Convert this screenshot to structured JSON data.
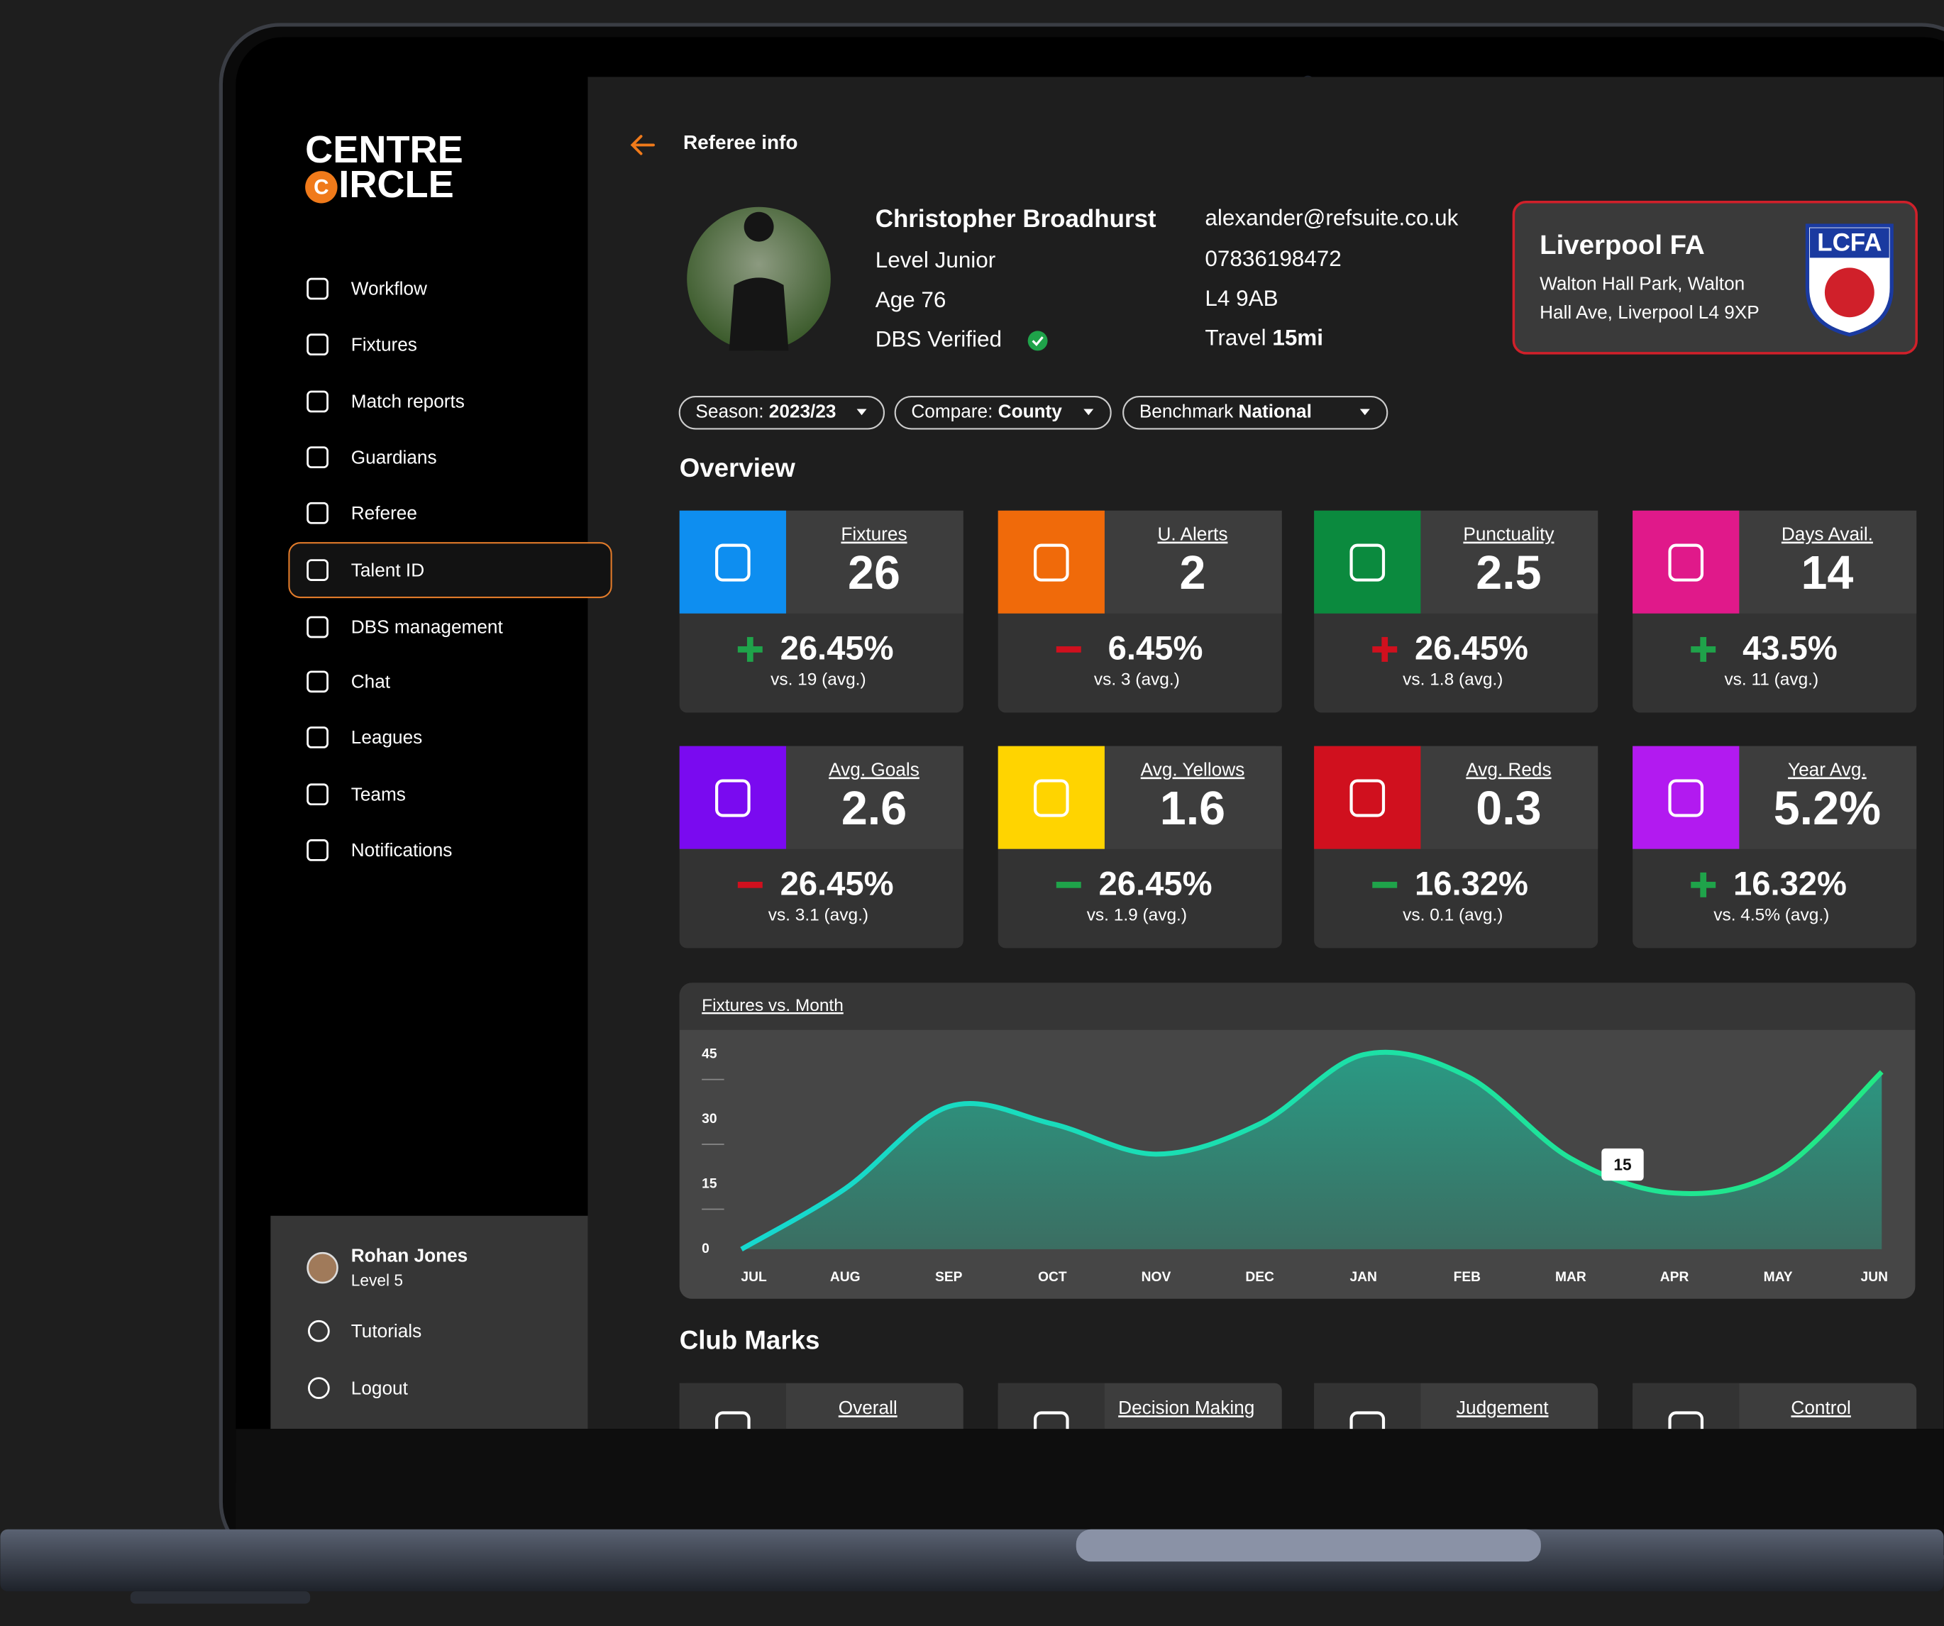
{
  "brand": {
    "top": "CENTRE",
    "mark": "C",
    "bottom": "IRCLE"
  },
  "nav": [
    {
      "label": "Workflow",
      "active": false
    },
    {
      "label": "Fixtures",
      "active": false
    },
    {
      "label": "Match reports",
      "active": false
    },
    {
      "label": "Guardians",
      "active": false
    },
    {
      "label": "Referee",
      "active": false
    },
    {
      "label": "Talent ID",
      "active": true
    },
    {
      "label": "DBS management",
      "active": false
    },
    {
      "label": "Chat",
      "active": false
    },
    {
      "label": "Leagues",
      "active": false
    },
    {
      "label": "Teams",
      "active": false
    },
    {
      "label": "Notifications",
      "active": false
    }
  ],
  "user": {
    "name": "Rohan Jones",
    "level": "Level 5"
  },
  "footer_nav": [
    "Tutorials",
    "Logout"
  ],
  "header": {
    "title": "Referee info"
  },
  "profile": {
    "name": "Christopher Broadhurst",
    "level": "Level Junior",
    "age": "Age 76",
    "dbs": "DBS Verified",
    "email": "alexander@refsuite.co.uk",
    "phone": "07836198472",
    "postcode": "L4 9AB",
    "travel_label": "Travel",
    "travel": "15mi"
  },
  "club": {
    "name": "Liverpool FA",
    "address_lines": [
      "Walton Hall Park, Walton",
      "Hall Ave, Liverpool L4 9XP"
    ],
    "badge": "LCFA"
  },
  "filters": [
    {
      "label": "Season:",
      "value": "2023/23"
    },
    {
      "label": "Compare:",
      "value": "County"
    },
    {
      "label": "Benchmark",
      "value": "National"
    }
  ],
  "overview": {
    "title": "Overview",
    "cards": [
      {
        "label": "Fixtures",
        "value": "26",
        "sign": "plus",
        "sign_color": "#1fa34a",
        "change": "26.45%",
        "comparison": "vs. 19 (avg.)",
        "color": "#0e8ef0"
      },
      {
        "label": "U. Alerts",
        "value": "2",
        "sign": "minus",
        "sign_color": "#d0101e",
        "change": "6.45%",
        "comparison": "vs. 3 (avg.)",
        "color": "#f06a0a"
      },
      {
        "label": "Punctuality",
        "value": "2.5",
        "sign": "plus",
        "sign_color": "#d0101e",
        "change": "26.45%",
        "comparison": "vs. 1.8 (avg.)",
        "color": "#0b8a3e"
      },
      {
        "label": "Days Avail.",
        "value": "14",
        "sign": "plus",
        "sign_color": "#1fa34a",
        "change": "43.5%",
        "comparison": "vs. 11 (avg.)",
        "color": "#e0198a"
      },
      {
        "label": "Avg. Goals",
        "value": "2.6",
        "sign": "minus",
        "sign_color": "#d0101e",
        "change": "26.45%",
        "comparison": "vs. 3.1 (avg.)",
        "color": "#7a0af0"
      },
      {
        "label": "Avg. Yellows",
        "value": "1.6",
        "sign": "minus",
        "sign_color": "#1fa34a",
        "change": "26.45%",
        "comparison": "vs. 1.9 (avg.)",
        "color": "#ffd400"
      },
      {
        "label": "Avg. Reds",
        "value": "0.3",
        "sign": "minus",
        "sign_color": "#1fa34a",
        "change": "16.32%",
        "comparison": "vs. 0.1 (avg.)",
        "color": "#d0101e"
      },
      {
        "label": "Year Avg.",
        "value": "5.2%",
        "sign": "plus",
        "sign_color": "#1fa34a",
        "change": "16.32%",
        "comparison": "vs. 4.5% (avg.)",
        "color": "#b21af0"
      }
    ]
  },
  "chart_data": {
    "type": "area",
    "title": "Fixtures vs. Month",
    "categories": [
      "JUL",
      "AUG",
      "SEP",
      "OCT",
      "NOV",
      "DEC",
      "JAN",
      "FEB",
      "MAR",
      "APR",
      "MAY",
      "JUN"
    ],
    "values": [
      0,
      14,
      33,
      29,
      22,
      29,
      45,
      40,
      21,
      13,
      18,
      41
    ],
    "ylim": [
      0,
      45
    ],
    "yticks": [
      0,
      15,
      30,
      45
    ],
    "annotation": 15,
    "color": "#1ee0b0"
  },
  "club_marks": {
    "title": "Club Marks",
    "cards": [
      "Overall",
      "Decision Making",
      "Judgement",
      "Control"
    ]
  }
}
